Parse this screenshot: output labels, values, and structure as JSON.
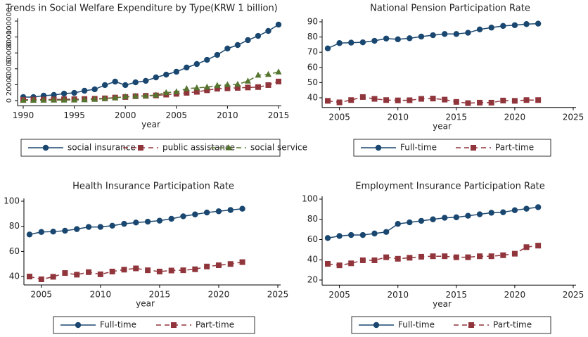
{
  "chart_data": [
    {
      "type": "line",
      "title": "Trends in Social Welfare Expenditure by Type(KRW 1 billion)",
      "x_label": "year",
      "x": [
        1990,
        1991,
        1992,
        1993,
        1994,
        1995,
        1996,
        1997,
        1998,
        1999,
        2000,
        2001,
        2002,
        2003,
        2004,
        2005,
        2006,
        2007,
        2008,
        2009,
        2010,
        2011,
        2012,
        2013,
        2014,
        2015
      ],
      "xlim": [
        1990,
        2015
      ],
      "xticks": [
        1990,
        1995,
        2000,
        2005,
        2010,
        2015
      ],
      "ylim": [
        -4000,
        100000
      ],
      "yticks": [
        0,
        20000,
        40000,
        60000,
        80000,
        100000
      ],
      "series": [
        {
          "name": "social insurance",
          "color": "#1a476f",
          "marker": "circle",
          "dash": false,
          "values": [
            4400,
            4400,
            6200,
            7100,
            8800,
            9700,
            12400,
            14200,
            19500,
            23900,
            19500,
            23000,
            24800,
            29200,
            32700,
            36300,
            41600,
            46000,
            51300,
            57500,
            65500,
            69900,
            76100,
            81400,
            87600,
            95600
          ]
        },
        {
          "name": "public assistance",
          "color": "#90353b",
          "marker": "square",
          "dash": true,
          "values": [
            1000,
            1200,
            1300,
            1500,
            1700,
            1800,
            2000,
            2300,
            2800,
            3800,
            4500,
            5500,
            6000,
            6500,
            7500,
            8500,
            9800,
            11000,
            13000,
            15000,
            15500,
            16000,
            16500,
            17000,
            19500,
            24000
          ]
        },
        {
          "name": "social service",
          "color": "#55752f",
          "marker": "triangle",
          "dash": true,
          "values": [
            300,
            400,
            500,
            600,
            700,
            800,
            1000,
            1500,
            2500,
            3500,
            5000,
            5500,
            6000,
            7000,
            10000,
            11000,
            15000,
            16000,
            17000,
            19000,
            20000,
            20500,
            24500,
            32000,
            33000,
            36000
          ]
        }
      ]
    },
    {
      "type": "line",
      "title": "National Pension Participation Rate",
      "x_label": "year",
      "x": [
        2004,
        2005,
        2006,
        2007,
        2008,
        2009,
        2010,
        2011,
        2012,
        2013,
        2014,
        2015,
        2016,
        2017,
        2018,
        2019,
        2020,
        2021,
        2022
      ],
      "xlim": [
        2004,
        2025
      ],
      "xticks": [
        2005,
        2010,
        2015,
        2020,
        2025
      ],
      "ylim": [
        35,
        92
      ],
      "yticks": [
        40,
        50,
        60,
        70,
        80,
        90
      ],
      "series": [
        {
          "name": "Full-time",
          "color": "#1a476f",
          "marker": "circle",
          "dash": false,
          "values": [
            72.5,
            76,
            76.3,
            76.5,
            77.5,
            79,
            78.5,
            79.2,
            80.3,
            81.2,
            82,
            82,
            82.8,
            85,
            86.2,
            87.3,
            87.8,
            88.5,
            88.8
          ]
        },
        {
          "name": "Part-time",
          "color": "#90353b",
          "marker": "square",
          "dash": true,
          "values": [
            38,
            37,
            38.5,
            40.5,
            39.3,
            38.5,
            38.3,
            38.4,
            39.3,
            39.5,
            38.8,
            37.3,
            36.5,
            36.8,
            36.8,
            38.2,
            38,
            38.5,
            38.5
          ]
        }
      ]
    },
    {
      "type": "line",
      "title": "Health Insurance Participation Rate",
      "x_label": "year",
      "x": [
        2004,
        2005,
        2006,
        2007,
        2008,
        2009,
        2010,
        2011,
        2012,
        2013,
        2014,
        2015,
        2016,
        2017,
        2018,
        2019,
        2020,
        2021,
        2022
      ],
      "xlim": [
        2004,
        2025
      ],
      "xticks": [
        2005,
        2010,
        2015,
        2020,
        2025
      ],
      "ylim": [
        35,
        100
      ],
      "yticks": [
        40,
        60,
        80,
        100
      ],
      "series": [
        {
          "name": "Full-time",
          "color": "#1a476f",
          "marker": "circle",
          "dash": false,
          "values": [
            73.5,
            75.5,
            75.8,
            76.5,
            77.8,
            79.5,
            79.5,
            80.5,
            82,
            83,
            83.7,
            84.5,
            86,
            88,
            89.5,
            91,
            92,
            93,
            94
          ]
        },
        {
          "name": "Part-time",
          "color": "#90353b",
          "marker": "square",
          "dash": true,
          "values": [
            40,
            37.8,
            39.8,
            42.8,
            41.5,
            43.5,
            41.8,
            44,
            45.5,
            46.5,
            45,
            44,
            44.8,
            45,
            45.8,
            48,
            49,
            50,
            51.5
          ]
        }
      ]
    },
    {
      "type": "line",
      "title": "Employment Insurance Participation Rate",
      "x_label": "year",
      "x": [
        2004,
        2005,
        2006,
        2007,
        2008,
        2009,
        2010,
        2011,
        2012,
        2013,
        2014,
        2015,
        2016,
        2017,
        2018,
        2019,
        2020,
        2021,
        2022
      ],
      "xlim": [
        2004,
        2025
      ],
      "xticks": [
        2005,
        2010,
        2015,
        2020,
        2025
      ],
      "ylim": [
        17,
        100
      ],
      "yticks": [
        20,
        40,
        60,
        80,
        100
      ],
      "series": [
        {
          "name": "Full-time",
          "color": "#1a476f",
          "marker": "circle",
          "dash": false,
          "values": [
            61.5,
            63.5,
            64.5,
            64.5,
            66,
            67.5,
            75.5,
            77,
            78.5,
            80,
            81.5,
            82,
            83.5,
            85,
            86.5,
            87,
            89,
            90.5,
            92
          ]
        },
        {
          "name": "Part-time",
          "color": "#90353b",
          "marker": "square",
          "dash": true,
          "values": [
            36,
            34.5,
            36.5,
            39.5,
            39.5,
            42.5,
            41,
            42,
            43,
            43.5,
            43.5,
            42.5,
            42.5,
            43.5,
            43.5,
            44.5,
            46,
            52.5,
            54
          ]
        }
      ]
    }
  ]
}
